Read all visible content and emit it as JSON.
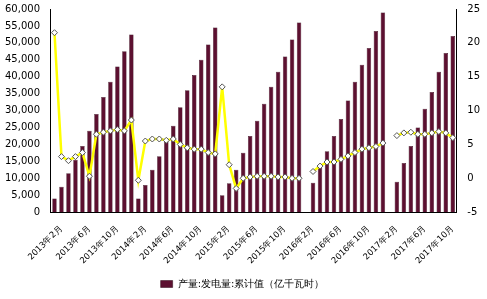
{
  "chart_data": {
    "type": "bar",
    "categories": [
      null,
      "2013年2月",
      null,
      null,
      null,
      "2013年6月",
      null,
      null,
      null,
      "2013年10月",
      null,
      null,
      null,
      "2014年2月",
      null,
      null,
      null,
      "2014年6月",
      null,
      null,
      null,
      "2014年10月",
      null,
      null,
      null,
      "2015年2月",
      null,
      null,
      null,
      "2015年6月",
      null,
      null,
      null,
      "2015年10月",
      null,
      null,
      null,
      "2016年2月",
      null,
      null,
      null,
      "2016年6月",
      null,
      null,
      null,
      "2016年10月",
      null,
      null,
      null,
      "2017年2月",
      null,
      null,
      null,
      "2017年6月",
      null,
      null,
      null,
      "2017年10月"
    ],
    "series": [
      {
        "name": "产量:发电量:累计值（亿千瓦时）",
        "type": "bar",
        "color": "#5c1030",
        "values": [
          4000,
          7500,
          11500,
          15500,
          19500,
          24000,
          29000,
          34000,
          38500,
          43000,
          47500,
          52500,
          4000,
          8000,
          12500,
          16500,
          21000,
          25500,
          31000,
          36000,
          40500,
          45000,
          49500,
          54500,
          5000,
          8500,
          12500,
          17500,
          22500,
          27000,
          32000,
          37000,
          41500,
          46000,
          51000,
          56000,
          null,
          8700,
          13000,
          18000,
          22500,
          27500,
          33000,
          38500,
          43500,
          48500,
          53500,
          59000,
          null,
          9000,
          14500,
          19500,
          25000,
          30500,
          35500,
          41500,
          47000,
          52000
        ]
      },
      {
        "type": "line",
        "axis": "y2",
        "color": "#ffff00",
        "marker": "diamond",
        "values": [
          21.5,
          3.2,
          2.6,
          3.2,
          3.8,
          0.3,
          6.5,
          6.8,
          7.0,
          7.2,
          7.0,
          8.6,
          -0.3,
          5.5,
          5.8,
          5.8,
          5.6,
          5.8,
          5.0,
          4.5,
          4.3,
          4.3,
          3.8,
          3.6,
          13.5,
          2.0,
          -1.5,
          0.0,
          0.2,
          0.3,
          0.3,
          0.3,
          0.2,
          0.2,
          0.0,
          0.0,
          null,
          1.0,
          1.8,
          2.4,
          2.4,
          2.8,
          3.3,
          3.8,
          4.3,
          4.5,
          4.7,
          5.2,
          null,
          6.3,
          6.7,
          6.8,
          6.5,
          6.5,
          6.7,
          6.9,
          6.7,
          6.0
        ]
      }
    ],
    "ylim": [
      0,
      60000
    ],
    "yticks": [
      0,
      {
        "value": 5000,
        "label": "5,000"
      },
      {
        "value": 10000,
        "label": "10,000"
      },
      {
        "value": 15000,
        "label": "15,000"
      },
      {
        "value": 20000,
        "label": "20,000"
      },
      {
        "value": 25000,
        "label": "25,000"
      },
      {
        "value": 30000,
        "label": "30,000"
      },
      {
        "value": 35000,
        "label": "35,000"
      },
      {
        "value": 40000,
        "label": "40,000"
      },
      {
        "value": 45000,
        "label": "45,000"
      },
      {
        "value": 50000,
        "label": "50,000"
      },
      {
        "value": 55000,
        "label": "55,000"
      },
      {
        "value": 60000,
        "label": "60,000"
      }
    ],
    "y2lim": [
      -5,
      25
    ],
    "y2ticks": [
      -5,
      0,
      5,
      10,
      15,
      20,
      25
    ],
    "grid": false,
    "legend": "bottom"
  }
}
